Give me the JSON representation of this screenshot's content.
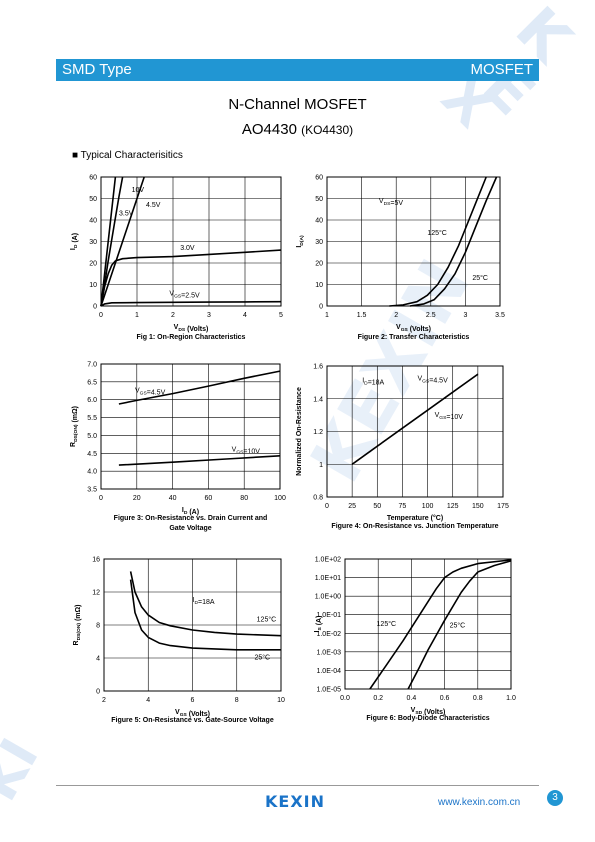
{
  "banner": {
    "left": "SMD Type",
    "right": "MOSFET"
  },
  "title": {
    "line1": "N-Channel MOSFET",
    "part": "AO4430",
    "alt_part": "(KO4430)"
  },
  "section": {
    "bullet": "■",
    "label": "Typical  Characterisitics"
  },
  "watermark": {
    "text": "KEXIN"
  },
  "footer": {
    "logo": "KEXIN",
    "url": "www.kexin.com.cn",
    "page": "3"
  },
  "chart_data": [
    {
      "id": "fig1",
      "type": "line",
      "caption": "Fig 1: On-Region Characteristics",
      "xlabel": "V_DS (Volts)",
      "ylabel": "I_D (A)",
      "xlim": [
        0,
        5
      ],
      "ylim": [
        0,
        60
      ],
      "xticks": [
        "0",
        "1",
        "2",
        "3",
        "4",
        "5"
      ],
      "yticks": [
        "0",
        "10",
        "20",
        "30",
        "40",
        "50",
        "60"
      ],
      "grid": true,
      "series": [
        {
          "name": "10V",
          "x": [
            0,
            0.1,
            0.2,
            0.3,
            0.4
          ],
          "y": [
            0,
            15,
            30,
            45,
            60
          ]
        },
        {
          "name": "4.5V",
          "x": [
            0,
            0.1,
            0.2,
            0.3,
            0.4,
            0.5,
            0.6
          ],
          "y": [
            0,
            10,
            21,
            31,
            41,
            51,
            60
          ]
        },
        {
          "name": "3.5V",
          "x": [
            0,
            0.2,
            0.4,
            0.6,
            0.8,
            1.0,
            1.2
          ],
          "y": [
            0,
            10,
            20,
            30,
            40,
            50,
            60
          ]
        },
        {
          "name": "3.0V",
          "x": [
            0,
            0.1,
            0.2,
            0.3,
            0.4,
            0.6,
            1.0,
            2.0,
            3.0,
            4.0,
            5.0
          ],
          "y": [
            0,
            9,
            15,
            19,
            21,
            22,
            22.5,
            23,
            24,
            25,
            26
          ]
        },
        {
          "name": "V_GS=2.5V",
          "x": [
            0,
            0.1,
            0.3,
            1,
            2,
            3,
            4,
            5
          ],
          "y": [
            0,
            1,
            1.5,
            1.6,
            1.7,
            1.8,
            1.9,
            2
          ]
        }
      ],
      "labels": [
        {
          "text": "10V",
          "x": 0.85,
          "y": 53
        },
        {
          "text": "4.5V",
          "x": 1.25,
          "y": 46
        },
        {
          "text": "3.5V",
          "x": 0.5,
          "y": 42
        },
        {
          "text": "3.0V",
          "x": 2.2,
          "y": 26
        },
        {
          "text": "V_GS=2.5V",
          "x": 1.9,
          "y": 5
        }
      ]
    },
    {
      "id": "fig2",
      "type": "line",
      "caption": "Figure 2: Transfer Characteristics",
      "xlabel": "V_GS (Volts)",
      "ylabel": "I_D(A)",
      "xlim": [
        1,
        3.5
      ],
      "ylim": [
        0,
        60
      ],
      "xticks": [
        "1",
        "1.5",
        "2",
        "2.5",
        "3",
        "3.5"
      ],
      "yticks": [
        "0",
        "10",
        "20",
        "30",
        "40",
        "50",
        "60"
      ],
      "grid": true,
      "series": [
        {
          "name": "125°C",
          "x": [
            1.9,
            2.1,
            2.3,
            2.45,
            2.6,
            2.75,
            2.9,
            3.05,
            3.15,
            3.3
          ],
          "y": [
            0,
            0.5,
            2,
            5,
            10,
            18,
            28,
            40,
            48,
            60
          ]
        },
        {
          "name": "25°C",
          "x": [
            2.2,
            2.4,
            2.55,
            2.7,
            2.85,
            3.0,
            3.15,
            3.3,
            3.45
          ],
          "y": [
            0,
            1,
            3,
            8,
            15,
            25,
            37,
            49,
            60
          ]
        }
      ],
      "labels": [
        {
          "text": "V_DS=5V",
          "x": 1.75,
          "y": 48
        },
        {
          "text": "125°C",
          "x": 2.45,
          "y": 33
        },
        {
          "text": "25°C",
          "x": 3.1,
          "y": 12
        }
      ]
    },
    {
      "id": "fig3",
      "type": "line",
      "caption": "Figure 3: On-Resistance vs. Drain Current and Gate Voltage",
      "caption_lines": [
        "Figure 3: On-Resistance vs. Drain Current and",
        "Gate Voltage"
      ],
      "xlabel": "I_D (A)",
      "ylabel": "R_DS(ON) (mΩ)",
      "xlim": [
        0,
        100
      ],
      "ylim": [
        3.5,
        7.0
      ],
      "xticks": [
        "0",
        "20",
        "40",
        "60",
        "80",
        "100"
      ],
      "yticks": [
        "3.5",
        "4.0",
        "4.5",
        "5.0",
        "5.5",
        "6.0",
        "6.5",
        "7.0"
      ],
      "grid": true,
      "series": [
        {
          "name": "V_GS=4.5V",
          "x": [
            10,
            20,
            40,
            60,
            80,
            100
          ],
          "y": [
            5.88,
            5.98,
            6.17,
            6.38,
            6.6,
            6.8
          ]
        },
        {
          "name": "V_GS=10V",
          "x": [
            10,
            40,
            70,
            100
          ],
          "y": [
            4.17,
            4.25,
            4.34,
            4.43
          ]
        }
      ],
      "labels": [
        {
          "text": "V_GS=4.5V",
          "x": 19,
          "y": 6.2
        },
        {
          "text": "V_GS=10V",
          "x": 73,
          "y": 4.55
        }
      ]
    },
    {
      "id": "fig4",
      "type": "line",
      "caption": "Figure 4: On-Resistance vs. Junction Temperature",
      "xlabel": "Temperature (°C)",
      "ylabel": "Normalized On-Resistance",
      "xlim": [
        0,
        175
      ],
      "ylim": [
        0.8,
        1.6
      ],
      "xticks": [
        "0",
        "25",
        "50",
        "75",
        "100",
        "125",
        "150",
        "175"
      ],
      "yticks": [
        "0.8",
        "1",
        "1.2",
        "1.4",
        "1.6"
      ],
      "grid": true,
      "series": [
        {
          "name": "V_GS=4.5V / V_GS=10V",
          "x": [
            25,
            50,
            75,
            100,
            125,
            150
          ],
          "y": [
            1.0,
            1.11,
            1.22,
            1.33,
            1.44,
            1.55
          ]
        }
      ],
      "labels": [
        {
          "text": "I_D=18A",
          "x": 35,
          "y": 1.5
        },
        {
          "text": "V_GS=4.5V",
          "x": 90,
          "y": 1.51
        },
        {
          "text": "V_GS=10V",
          "x": 107,
          "y": 1.29
        }
      ]
    },
    {
      "id": "fig5",
      "type": "line",
      "caption": "Figure 5: On-Resistance vs. Gate-Source Voltage",
      "xlabel": "V_GS (Volts)",
      "ylabel": "R_DS(ON) (mΩ)",
      "xlim": [
        2,
        10
      ],
      "ylim": [
        0,
        16
      ],
      "xticks": [
        "2",
        "4",
        "6",
        "8",
        "10"
      ],
      "yticks": [
        "0",
        "4",
        "8",
        "12",
        "16"
      ],
      "grid": true,
      "series": [
        {
          "name": "125°C",
          "x": [
            3.2,
            3.4,
            3.7,
            4.0,
            4.5,
            5,
            6,
            7,
            8,
            10
          ],
          "y": [
            14.5,
            12,
            10.2,
            9.2,
            8.3,
            7.9,
            7.4,
            7.1,
            6.9,
            6.7
          ]
        },
        {
          "name": "25°C",
          "x": [
            3.2,
            3.4,
            3.7,
            4.0,
            4.5,
            5,
            6,
            7,
            8,
            10
          ],
          "y": [
            13.5,
            9.5,
            7.4,
            6.5,
            5.8,
            5.5,
            5.2,
            5.1,
            5.0,
            5.0
          ]
        }
      ],
      "labels": [
        {
          "text": "I_D=18A",
          "x": 6.0,
          "y": 10.8
        },
        {
          "text": "125°C",
          "x": 8.9,
          "y": 8.4
        },
        {
          "text": "25°C",
          "x": 8.8,
          "y": 3.8
        }
      ]
    },
    {
      "id": "fig6",
      "type": "line",
      "caption": "Figure 6: Body-Diode Characteristics",
      "xlabel": "V_SD (Volts)",
      "ylabel": "I_S (A)",
      "xlim": [
        0,
        1.0
      ],
      "ylim": [
        -5,
        2
      ],
      "yscale": "log",
      "xticks": [
        "0.0",
        "0.2",
        "0.4",
        "0.6",
        "0.8",
        "1.0"
      ],
      "yticks": [
        "1.0E-05",
        "1.0E-04",
        "1.0E-03",
        "1.0E-02",
        "1.0E-01",
        "1.0E+00",
        "1.0E+01",
        "1.0E+02"
      ],
      "grid": true,
      "series": [
        {
          "name": "125°C",
          "x": [
            0.15,
            0.25,
            0.35,
            0.45,
            0.55,
            0.6,
            0.65,
            0.7,
            0.8,
            1.0
          ],
          "y": [
            -5,
            -3.7,
            -2.4,
            -1.0,
            0.4,
            1.0,
            1.3,
            1.5,
            1.75,
            1.95
          ]
        },
        {
          "name": "25°C",
          "x": [
            0.38,
            0.45,
            0.5,
            0.6,
            0.7,
            0.75,
            0.8,
            0.9,
            1.0
          ],
          "y": [
            -5,
            -3.8,
            -2.9,
            -1.3,
            0.2,
            0.8,
            1.3,
            1.65,
            1.9
          ]
        }
      ],
      "labels": [
        {
          "text": "125°C",
          "x": 0.19,
          "y": -1.6
        },
        {
          "text": "25°C",
          "x": 0.63,
          "y": -1.7
        }
      ]
    }
  ]
}
